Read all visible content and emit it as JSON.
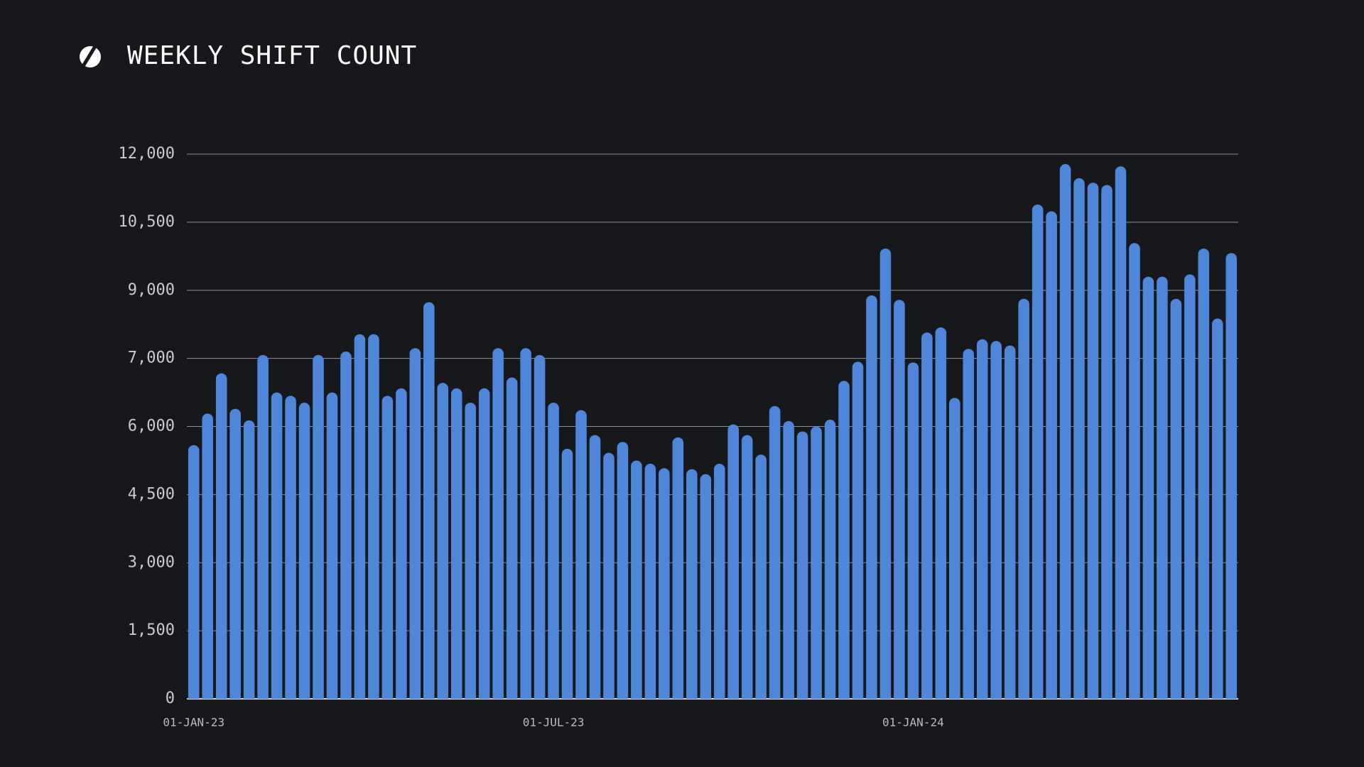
{
  "chart_data": {
    "type": "bar",
    "title": "WEEKLY SHIFT COUNT",
    "color": "#4f86d9",
    "grid": true,
    "ylim": [
      0,
      12000
    ],
    "yticks": [
      0,
      {
        "value": 1500,
        "label": "1,500"
      },
      {
        "value": 3000,
        "label": "3,000"
      },
      {
        "value": 4500,
        "label": "4,500"
      },
      {
        "value": 6000,
        "label": "6,000"
      },
      {
        "value": 7000,
        "label": "7,000"
      },
      {
        "value": 9000,
        "label": "9,000"
      },
      {
        "value": 10500,
        "label": "10,500"
      },
      {
        "value": 12000,
        "label": "12,000"
      }
    ],
    "categories": [
      "01-JAN-23",
      null,
      null,
      null,
      null,
      null,
      null,
      null,
      null,
      null,
      null,
      null,
      null,
      null,
      null,
      null,
      null,
      null,
      null,
      null,
      null,
      null,
      null,
      null,
      null,
      null,
      "01-JUL-23",
      null,
      null,
      null,
      null,
      null,
      null,
      null,
      null,
      null,
      null,
      null,
      null,
      null,
      null,
      null,
      null,
      null,
      null,
      null,
      null,
      null,
      null,
      null,
      null,
      null,
      "01-JAN-24",
      null,
      null,
      null,
      null,
      null,
      null,
      null,
      null,
      null,
      null,
      null,
      null,
      null,
      null,
      null,
      null,
      null,
      null,
      null,
      null,
      null,
      null,
      null
    ],
    "values": [
      5590,
      6190,
      6780,
      6260,
      6090,
      7100,
      6500,
      6450,
      6350,
      7100,
      6500,
      7200,
      7710,
      7710,
      6450,
      6560,
      7300,
      8650,
      6640,
      6560,
      6350,
      6560,
      7300,
      6720,
      7300,
      7100,
      6350,
      5510,
      6240,
      5810,
      5420,
      5660,
      5250,
      5180,
      5080,
      5760,
      5060,
      4950,
      5180,
      6030,
      5810,
      5380,
      6300,
      6080,
      5890,
      6000,
      6100,
      6670,
      6950,
      8850,
      9920,
      8720,
      6940,
      7760,
      7910,
      6420,
      7280,
      7560,
      7510,
      7380,
      8750,
      10890,
      10740,
      11780,
      11470,
      11370,
      11320,
      11730,
      10040,
      9300,
      9300,
      8750,
      9350,
      9920,
      8170,
      9820
    ]
  }
}
